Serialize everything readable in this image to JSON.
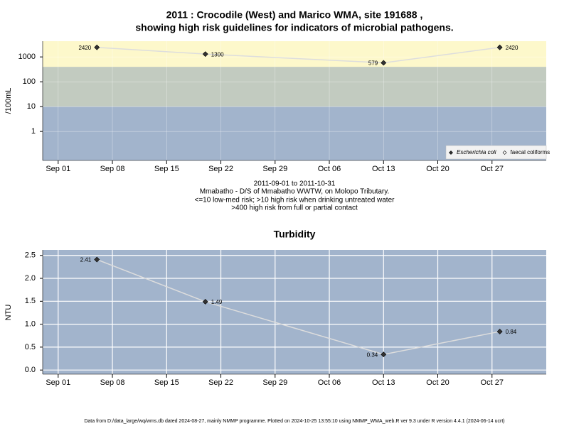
{
  "chart_data": [
    {
      "type": "line",
      "title": [
        "2011 : Crocodile (West) and Marico WMA, site 191688 ,",
        "showing high risk guidelines for indicators of microbial pathogens."
      ],
      "subtitle": [
        "2011-09-01 to 2011-10-31",
        "Mmabatho - D/S of Mmabatho WWTW, on Molopo Tributary.",
        "<=10 low-med risk; >10 high risk when drinking untreated water",
        ">400 high risk from full or partial contact"
      ],
      "y_label": "/100mL",
      "log_y": true,
      "x": [
        "2011-09-06",
        "2011-09-20",
        "2011-10-13",
        "2011-10-28"
      ],
      "series": [
        {
          "name": "Escherichia coli",
          "color": "#333333",
          "line_color": "#dddddd",
          "italic": true,
          "values": [
            2420,
            1300,
            579,
            2420
          ]
        },
        {
          "name": "faecal coliforms",
          "color": "#ffffff",
          "line_color": "#dddddd",
          "italic": false,
          "values": [
            null,
            null,
            null,
            null
          ]
        }
      ],
      "xlim": [
        "2011-08-30",
        "2011-11-03"
      ],
      "xticks": [
        {
          "value": "2011-09-01",
          "label": "Sep 01"
        },
        {
          "value": "2011-09-08",
          "label": "Sep 08"
        },
        {
          "value": "2011-09-15",
          "label": "Sep 15"
        },
        {
          "value": "2011-09-22",
          "label": "Sep 22"
        },
        {
          "value": "2011-09-29",
          "label": "Sep 29"
        },
        {
          "value": "2011-10-06",
          "label": "Oct 06"
        },
        {
          "value": "2011-10-13",
          "label": "Oct 13"
        },
        {
          "value": "2011-10-20",
          "label": "Oct 20"
        },
        {
          "value": "2011-10-27",
          "label": "Oct 27"
        }
      ],
      "ylim": [
        0.068,
        4300
      ],
      "yticks": [
        1,
        10,
        100,
        1000
      ],
      "thresholds": [
        10,
        400
      ],
      "band_colors": [
        "#a2b4cc",
        "#c2cbc0",
        "#fdf8cb"
      ],
      "grid": true,
      "legend": "bottom-right"
    },
    {
      "type": "line",
      "title": "Turbidity",
      "y_label": "NTU",
      "log_y": false,
      "x": [
        "2011-09-06",
        "2011-09-20",
        "2011-10-13",
        "2011-10-28"
      ],
      "values": [
        2.41,
        1.49,
        0.34,
        0.84
      ],
      "color": "#333333",
      "line_color": "#dddddd",
      "xlim": [
        "2011-08-30",
        "2011-11-03"
      ],
      "xticks": [
        {
          "value": "2011-09-01",
          "label": "Sep 01"
        },
        {
          "value": "2011-09-08",
          "label": "Sep 08"
        },
        {
          "value": "2011-09-15",
          "label": "Sep 15"
        },
        {
          "value": "2011-09-22",
          "label": "Sep 22"
        },
        {
          "value": "2011-09-29",
          "label": "Sep 29"
        },
        {
          "value": "2011-10-06",
          "label": "Oct 06"
        },
        {
          "value": "2011-10-13",
          "label": "Oct 13"
        },
        {
          "value": "2011-10-20",
          "label": "Oct 20"
        },
        {
          "value": "2011-10-27",
          "label": "Oct 27"
        }
      ],
      "ylim": [
        -0.09,
        2.62
      ],
      "yticks": [
        {
          "value": 0,
          "label": "0.0"
        },
        0.5,
        {
          "value": 1,
          "label": "1.0"
        },
        1.5,
        {
          "value": 2,
          "label": "2.0"
        },
        2.5
      ],
      "background": "#a2b4cc",
      "grid": true
    }
  ],
  "footer": "Data from D:/data_large/wq/wms.db dated 2024-08-27, mainly NMMP programme. Plotted on 2024-10-25 13:55:10 using NMMP_WMA_web.R ver 9.3 under R version 4.4.1 (2024-06-14 ucrt)"
}
